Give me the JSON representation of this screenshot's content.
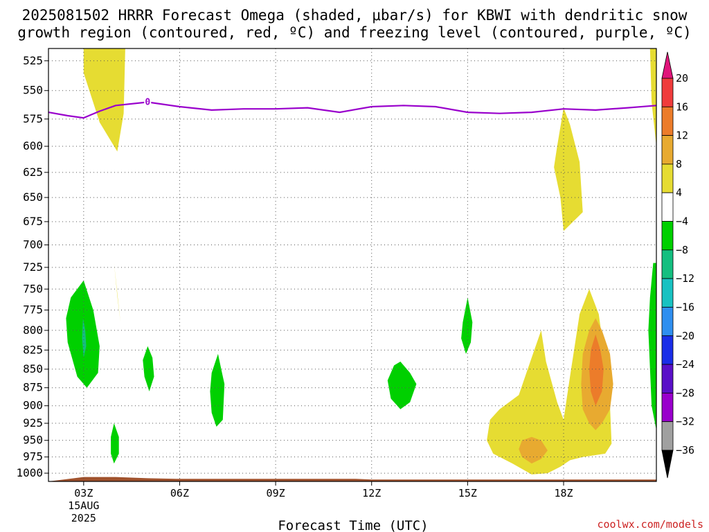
{
  "title": {
    "line1": "2025081502 HRRR Forecast Omega (shaded, μbar/s) for KBWI with dendritic snow",
    "line2": "growth region (contoured, red, ºC) and freezing level (contoured, purple, ºC)"
  },
  "credit": "coolwx.com/models",
  "chart_data": {
    "type": "heatmap",
    "x_label": "Forecast Time (UTC)",
    "x_unit": "hour UTC",
    "x_range": [
      1.9,
      20.9
    ],
    "x_ticks": [
      {
        "value": 3,
        "label": "03Z",
        "sublabel1": "15AUG",
        "sublabel2": "2025"
      },
      {
        "value": 6,
        "label": "06Z"
      },
      {
        "value": 9,
        "label": "09Z"
      },
      {
        "value": 12,
        "label": "12Z"
      },
      {
        "value": 15,
        "label": "15Z"
      },
      {
        "value": 18,
        "label": "18Z"
      }
    ],
    "y_unit": "hPa",
    "y_scale": "log",
    "y_range": [
      1013,
      515
    ],
    "y_ticks": [
      525,
      550,
      575,
      600,
      625,
      650,
      675,
      700,
      725,
      750,
      775,
      800,
      825,
      850,
      875,
      900,
      925,
      950,
      975,
      1000
    ],
    "grid": "dotted",
    "colorbar": {
      "levels": [
        -36,
        -32,
        -28,
        -24,
        -20,
        -16,
        -12,
        -8,
        -4,
        4,
        8,
        12,
        16,
        20
      ],
      "colors": [
        "#000000",
        "#a0a0a0",
        "#9900cc",
        "#5a10c8",
        "#1a2ee8",
        "#2f8ff0",
        "#18c2c2",
        "#14bf80",
        "#00d000",
        "#ffffff",
        "#e6dc32",
        "#e8aa30",
        "#ec7c2a",
        "#f03c3c",
        "#e0157a"
      ],
      "extend_low_color": "#000000",
      "extend_high_color": "#e0157a"
    },
    "freezing_level": {
      "label": "0",
      "color": "#9900cc",
      "x": [
        1.9,
        2.5,
        3.0,
        3.5,
        4.0,
        5.0,
        6.0,
        7.0,
        8.0,
        9.0,
        10.0,
        11.0,
        12.0,
        13.0,
        14.0,
        15.0,
        16.0,
        17.0,
        18.0,
        19.0,
        20.0,
        20.9
      ],
      "y": [
        569,
        572,
        574,
        568,
        563,
        560,
        564,
        567,
        566,
        566,
        565,
        569,
        564,
        563,
        564,
        569,
        570,
        569,
        566,
        567,
        565,
        563
      ]
    },
    "omega_regions": [
      {
        "level": 4,
        "color": "#e6dc32",
        "x": [
          3.0,
          4.3,
          4.25,
          4.05,
          3.5,
          3.0
        ],
        "y": [
          515,
          515,
          570,
          605,
          578,
          535
        ]
      },
      {
        "level": 4,
        "color": "#e6dc32",
        "x": [
          3.95,
          4.05,
          4.15,
          4.05,
          3.95
        ],
        "y": [
          720,
          755,
          790,
          758,
          720
        ]
      },
      {
        "level": 4,
        "color": "#e6dc32",
        "x": [
          17.8,
          18.0,
          18.2,
          18.5,
          18.6,
          18.0,
          17.9,
          17.7,
          17.8
        ],
        "y": [
          600,
          565,
          580,
          615,
          665,
          685,
          650,
          620,
          600
        ]
      },
      {
        "level": 4,
        "color": "#e6dc32",
        "x": [
          20.7,
          20.9,
          20.9,
          20.75,
          20.7
        ],
        "y": [
          515,
          515,
          600,
          560,
          515
        ]
      },
      {
        "level": 4,
        "color": "#e6dc32",
        "x": [
          16.6,
          17.0,
          17.3,
          17.45,
          17.8,
          18.0,
          18.2,
          18.5,
          18.8,
          19.1,
          19.3,
          19.45,
          19.5,
          19.3,
          18.6,
          18.2,
          17.9,
          17.5,
          17.0,
          16.4,
          15.8,
          15.6,
          15.7,
          16.0,
          16.6
        ],
        "y": [
          885,
          835,
          800,
          840,
          895,
          920,
          860,
          780,
          750,
          780,
          840,
          900,
          955,
          970,
          975,
          980,
          990,
          1000,
          1002,
          985,
          970,
          950,
          920,
          905,
          885
        ]
      },
      {
        "level": 8,
        "color": "#e8aa30",
        "x": [
          19.0,
          19.2,
          19.45,
          19.55,
          19.45,
          19.2,
          19.0,
          18.8,
          18.6,
          18.55,
          18.6,
          18.8,
          19.0
        ],
        "y": [
          785,
          800,
          830,
          870,
          905,
          925,
          935,
          925,
          905,
          870,
          830,
          800,
          785
        ]
      },
      {
        "level": 8,
        "color": "#e8aa30",
        "x": [
          17.0,
          17.3,
          17.5,
          17.3,
          17.0,
          16.7,
          16.6,
          16.7,
          17.0
        ],
        "y": [
          945,
          950,
          965,
          978,
          985,
          975,
          963,
          950,
          945
        ]
      },
      {
        "level": 12,
        "color": "#ec7c2a",
        "x": [
          19.0,
          19.15,
          19.25,
          19.2,
          19.0,
          18.85,
          18.8,
          18.85,
          19.0
        ],
        "y": [
          805,
          825,
          850,
          880,
          900,
          880,
          850,
          825,
          805
        ]
      },
      {
        "level": -4,
        "color": "#00d000",
        "x": [
          3.0,
          3.3,
          3.5,
          3.45,
          3.1,
          2.8,
          2.5,
          2.45,
          2.6,
          3.0
        ],
        "y": [
          740,
          775,
          820,
          855,
          875,
          860,
          815,
          785,
          760,
          740
        ]
      },
      {
        "level": -8,
        "color": "#14bf80",
        "x": [
          2.98,
          3.05,
          3.08,
          3.0,
          2.95,
          2.98
        ],
        "y": [
          785,
          800,
          820,
          835,
          810,
          785
        ]
      },
      {
        "level": -4,
        "color": "#00d000",
        "x": [
          5.0,
          5.15,
          5.2,
          5.05,
          4.9,
          4.85,
          5.0
        ],
        "y": [
          820,
          835,
          860,
          880,
          860,
          838,
          820
        ]
      },
      {
        "level": -4,
        "color": "#00d000",
        "x": [
          7.2,
          7.3,
          7.4,
          7.35,
          7.15,
          7.0,
          6.95,
          7.0,
          7.2
        ],
        "y": [
          830,
          850,
          870,
          920,
          930,
          910,
          880,
          855,
          830
        ]
      },
      {
        "level": -4,
        "color": "#00d000",
        "x": [
          3.95,
          4.1,
          4.1,
          3.95,
          3.85,
          3.85,
          3.95
        ],
        "y": [
          925,
          945,
          970,
          985,
          970,
          945,
          925
        ]
      },
      {
        "level": -4,
        "color": "#00d000",
        "x": [
          12.9,
          13.2,
          13.4,
          13.2,
          12.9,
          12.6,
          12.5,
          12.7,
          12.9
        ],
        "y": [
          840,
          855,
          870,
          895,
          905,
          890,
          865,
          845,
          840
        ]
      },
      {
        "level": -4,
        "color": "#00d000",
        "x": [
          15.0,
          15.15,
          15.1,
          14.95,
          14.8,
          14.85,
          15.0
        ],
        "y": [
          760,
          790,
          815,
          830,
          810,
          790,
          760
        ]
      },
      {
        "level": -4,
        "color": "#00d000",
        "x": [
          20.8,
          20.9,
          20.9,
          20.75,
          20.65,
          20.7,
          20.8
        ],
        "y": [
          720,
          720,
          935,
          900,
          800,
          760,
          720
        ]
      }
    ],
    "terrain": {
      "color": "#a0522d",
      "x": [
        1.9,
        3.0,
        4.0,
        4.5,
        5.0,
        6.0,
        11.5,
        12.0,
        20.9
      ],
      "y": [
        1013,
        1006,
        1006,
        1007,
        1008,
        1009,
        1009,
        1010,
        1010
      ]
    }
  }
}
